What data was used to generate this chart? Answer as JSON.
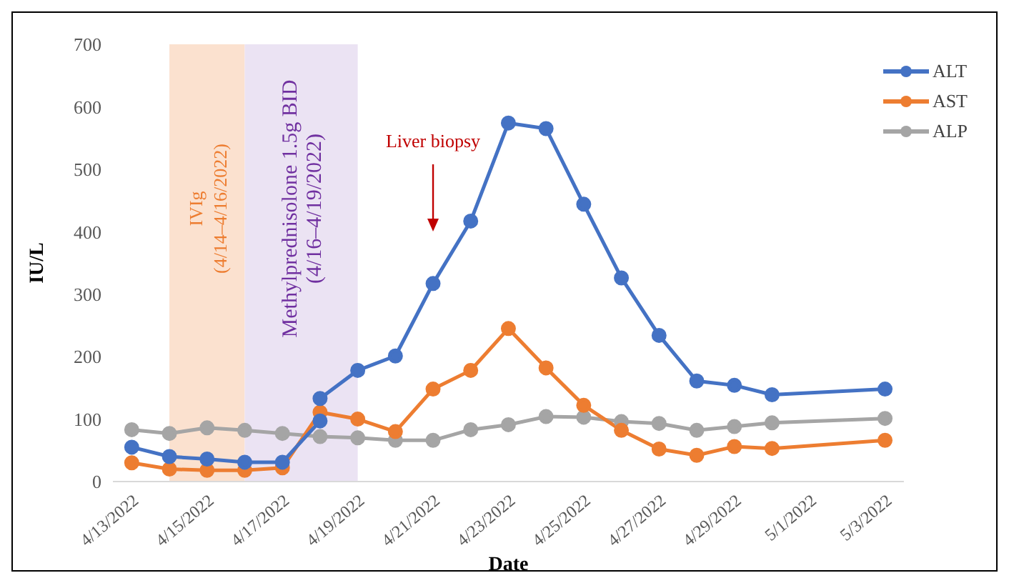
{
  "chart_data": {
    "type": "line",
    "xlabel": "Date",
    "ylabel": "IU/L",
    "xlim": [
      "2022-04-12T12:00",
      "2022-05-03T12:00"
    ],
    "xticks": [
      {
        "value": "2022-04-13",
        "label": "4/13/2022"
      },
      {
        "value": "2022-04-15",
        "label": "4/15/2022"
      },
      {
        "value": "2022-04-17",
        "label": "4/17/2022"
      },
      {
        "value": "2022-04-19",
        "label": "4/19/2022"
      },
      {
        "value": "2022-04-21",
        "label": "4/21/2022"
      },
      {
        "value": "2022-04-23",
        "label": "4/23/2022"
      },
      {
        "value": "2022-04-25",
        "label": "4/25/2022"
      },
      {
        "value": "2022-04-27",
        "label": "4/27/2022"
      },
      {
        "value": "2022-04-29",
        "label": "4/29/2022"
      },
      {
        "value": "2022-05-01",
        "label": "5/1/2022"
      },
      {
        "value": "2022-05-03",
        "label": "5/3/2022"
      }
    ],
    "ylim": [
      0,
      700
    ],
    "yticks": [
      0,
      100,
      200,
      300,
      400,
      500,
      600,
      700
    ],
    "grid": false,
    "legend": "top right",
    "marker": "circle",
    "line_style": "solid",
    "x": [
      "2022-04-13",
      "2022-04-14",
      "2022-04-15",
      "2022-04-16",
      "2022-04-17",
      "2022-04-18",
      "2022-04-19",
      "2022-04-20",
      "2022-04-21",
      "2022-04-22",
      "2022-04-23",
      "2022-04-24",
      "2022-04-25",
      "2022-04-26",
      "2022-04-27",
      "2022-04-28",
      "2022-04-29",
      "2022-04-30",
      "2022-05-03"
    ],
    "series": [
      {
        "name": "ALT",
        "color": "#4472c4",
        "x": [
          "2022-04-13",
          "2022-04-14",
          "2022-04-15",
          "2022-04-16",
          "2022-04-17",
          "2022-04-18",
          "2022-04-18",
          "2022-04-19",
          "2022-04-20",
          "2022-04-21",
          "2022-04-22",
          "2022-04-23",
          "2022-04-24",
          "2022-04-25",
          "2022-04-26",
          "2022-04-27",
          "2022-04-28",
          "2022-04-29",
          "2022-04-30",
          "2022-05-03"
        ],
        "values": [
          55,
          40,
          36,
          31,
          31,
          97,
          133,
          178,
          201,
          317,
          417,
          574,
          565,
          444,
          326,
          234,
          161,
          154,
          139,
          148
        ]
      },
      {
        "name": "AST",
        "color": "#ed7d31",
        "values": [
          30,
          20,
          18,
          18,
          22,
          111,
          100,
          80,
          148,
          178,
          245,
          182,
          122,
          82,
          52,
          42,
          56,
          53,
          66
        ]
      },
      {
        "name": "ALP",
        "color": "#a5a5a5",
        "values": [
          83,
          77,
          86,
          82,
          77,
          72,
          70,
          66,
          66,
          83,
          91,
          104,
          103,
          96,
          93,
          82,
          88,
          94,
          101
        ]
      }
    ],
    "bands": [
      {
        "axis": "x",
        "from": "2022-04-14",
        "to": "2022-04-16",
        "label": "IVIg\n(4/14–4/16/2022)",
        "color": "#fbe1cf"
      },
      {
        "axis": "x",
        "from": "2022-04-16",
        "to": "2022-04-19",
        "label": "Methylprednisolone 1.5g BID\n(4/16–4/19/2022)",
        "color": "#ebe3f3"
      }
    ],
    "annotations": [
      {
        "text": "Liver biopsy",
        "x": "2022-04-21"
      }
    ]
  }
}
